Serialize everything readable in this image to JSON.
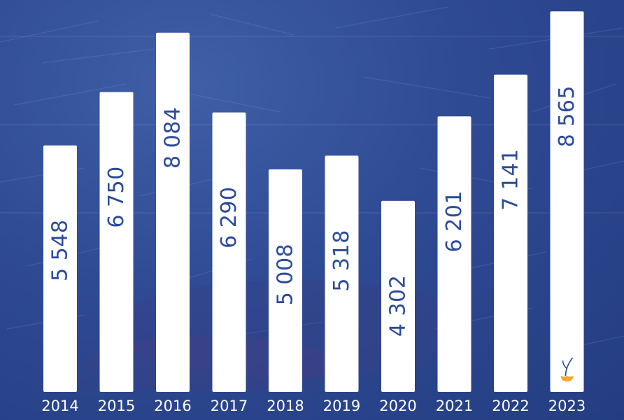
{
  "chart_data": {
    "type": "bar",
    "title": "",
    "xlabel": "",
    "ylabel": "",
    "categories": [
      "2014",
      "2015",
      "2016",
      "2017",
      "2018",
      "2019",
      "2020",
      "2021",
      "2022",
      "2023"
    ],
    "values": [
      5548,
      6750,
      8084,
      6290,
      5008,
      5318,
      4302,
      6201,
      7141,
      8565
    ],
    "value_labels": [
      "5 548",
      "6 750",
      "8 084",
      "6 290",
      "5 008",
      "5 318",
      "4 302",
      "6 201",
      "7 141",
      "8 565"
    ],
    "ylim": [
      0,
      8600
    ],
    "grid": true,
    "legend": "none",
    "value_label_orientation": "vertical"
  },
  "colors": {
    "background": "#2e4a93",
    "bar": "#ffffff",
    "value_text": "#2b4a9a",
    "tick_text": "#ffffff",
    "flower_petal": "#f0a830",
    "flower_stem": "#2b4a9a"
  },
  "icons": {
    "last_bar_marker": "flower-icon"
  }
}
